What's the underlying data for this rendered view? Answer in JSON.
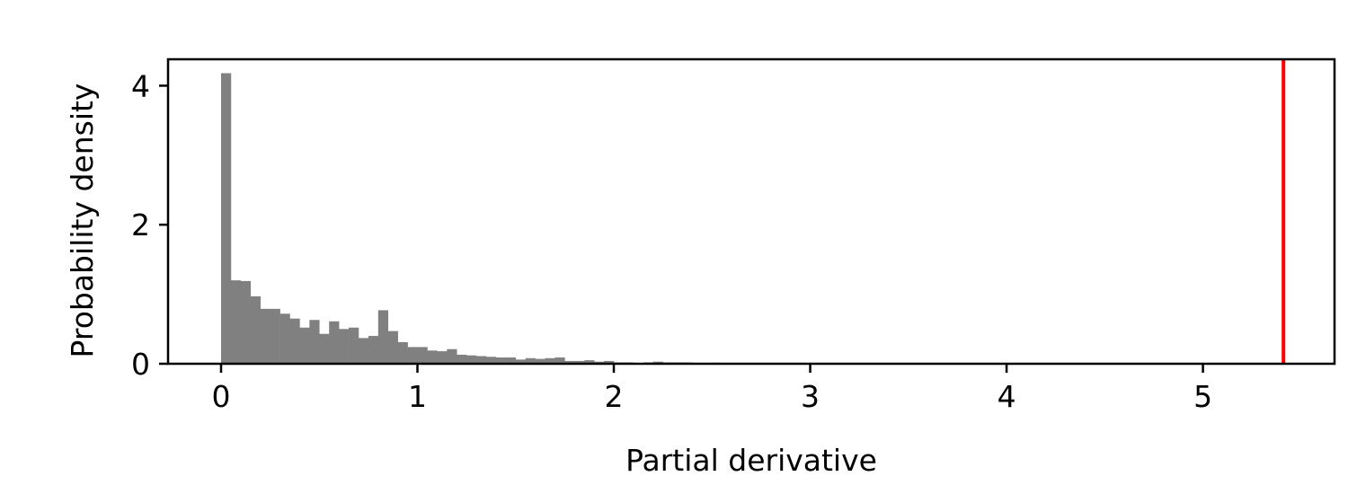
{
  "chart_data": {
    "type": "bar",
    "xlabel": "Partial derivative",
    "ylabel": "Probability density",
    "xlim": [
      -0.27,
      5.67
    ],
    "ylim": [
      0,
      4.38
    ],
    "x_ticks": [
      "0",
      "1",
      "2",
      "3",
      "4",
      "5"
    ],
    "y_ticks": [
      "0",
      "2",
      "4"
    ],
    "grid": false,
    "legend": "none",
    "bar_color": "#808080",
    "bins": {
      "bin_width": 0.05,
      "x_start": 0.0,
      "values": [
        4.18,
        1.2,
        1.19,
        0.97,
        0.79,
        0.79,
        0.72,
        0.65,
        0.52,
        0.63,
        0.43,
        0.61,
        0.5,
        0.52,
        0.37,
        0.4,
        0.77,
        0.47,
        0.31,
        0.24,
        0.24,
        0.19,
        0.18,
        0.21,
        0.13,
        0.12,
        0.11,
        0.1,
        0.09,
        0.09,
        0.06,
        0.08,
        0.07,
        0.08,
        0.09,
        0.04,
        0.04,
        0.05,
        0.03,
        0.04,
        0.02,
        0.02,
        0.01,
        0.02,
        0.03,
        0.02,
        0.02,
        0.02,
        0.01,
        0.01,
        0.015,
        0.01,
        0.01,
        0.01,
        0.01,
        0.01
      ]
    },
    "reference_line": {
      "x": 5.41,
      "color": "#ff0000"
    }
  }
}
